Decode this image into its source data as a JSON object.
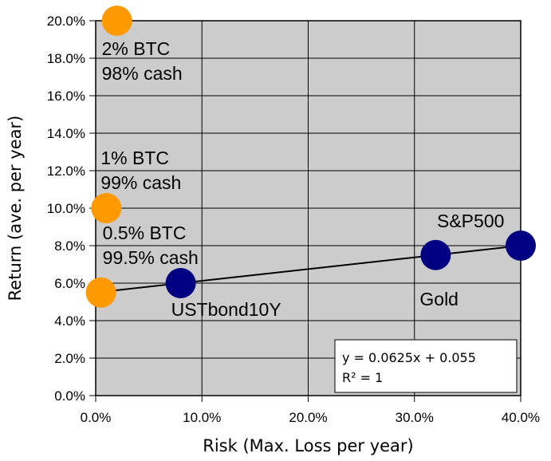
{
  "chart_data": {
    "type": "scatter",
    "xlabel": "Risk (Max. Loss per year)",
    "ylabel": "Return (ave. per year)",
    "xlim": [
      0,
      0.4
    ],
    "ylim": [
      0,
      0.2
    ],
    "x_ticks": [
      {
        "value": 0.0,
        "label": "0.0%"
      },
      {
        "value": 0.1,
        "label": "10.0%"
      },
      {
        "value": 0.2,
        "label": "20.0%"
      },
      {
        "value": 0.3,
        "label": "30.0%"
      },
      {
        "value": 0.4,
        "label": "40.0%"
      }
    ],
    "y_ticks": [
      {
        "value": 0.0,
        "label": "0.0%"
      },
      {
        "value": 0.02,
        "label": "2.0%"
      },
      {
        "value": 0.04,
        "label": "4.0%"
      },
      {
        "value": 0.06,
        "label": "6.0%"
      },
      {
        "value": 0.08,
        "label": "8.0%"
      },
      {
        "value": 0.1,
        "label": "10.0%"
      },
      {
        "value": 0.12,
        "label": "12.0%"
      },
      {
        "value": 0.14,
        "label": "14.0%"
      },
      {
        "value": 0.16,
        "label": "16.0%"
      },
      {
        "value": 0.18,
        "label": "18.0%"
      },
      {
        "value": 0.2,
        "label": "20.0%"
      }
    ],
    "grid": true,
    "series": [
      {
        "color": "#ff9900",
        "points": [
          {
            "x": 0.005,
            "y": 0.055,
            "label": [
              "0.5% BTC",
              "99.5% cash"
            ]
          },
          {
            "x": 0.01,
            "y": 0.1,
            "label": [
              "1% BTC",
              "99% cash"
            ]
          },
          {
            "x": 0.02,
            "y": 0.2,
            "label": [
              "2% BTC",
              "98% cash"
            ]
          }
        ]
      },
      {
        "color": "#000080",
        "points": [
          {
            "x": 0.08,
            "y": 0.06,
            "label": [
              "USTbond10Y"
            ]
          },
          {
            "x": 0.32,
            "y": 0.075,
            "label": [
              "Gold"
            ]
          },
          {
            "x": 0.4,
            "y": 0.08,
            "label": [
              "S&P500"
            ]
          }
        ]
      }
    ],
    "trendline": {
      "x_range": [
        0.0,
        0.4
      ],
      "slope": 0.0625,
      "intercept": 0.055,
      "equation": "y = 0.0625x + 0.055",
      "r2": "R² = 1",
      "color": "#000000"
    },
    "colors": {
      "plot_bg": "#cccccc",
      "grid": "#000000",
      "frame": "#000000"
    }
  }
}
